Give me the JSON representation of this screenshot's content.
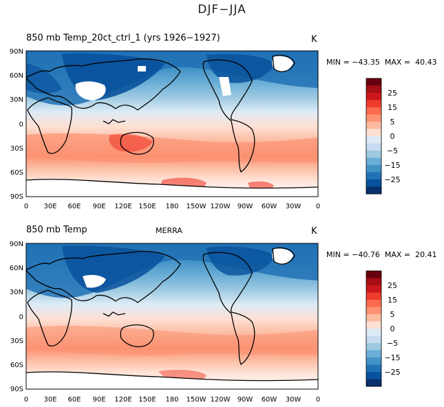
{
  "main_title": "DJF−JJA",
  "panels": [
    {
      "id": "model",
      "left_title": "850 mb Temp_20ct_ctrl_1 (yrs 1926−1927)",
      "center_title": "",
      "unit": "K",
      "stats": "MIN = −43.35  MAX =  40.43"
    },
    {
      "id": "merra",
      "left_title": "850 mb Temp",
      "center_title": "MERRA",
      "unit": "K",
      "stats": "MIN = −40.76  MAX =  20.41"
    }
  ],
  "lat_labels": [
    "90N",
    "60N",
    "30N",
    "0",
    "30S",
    "60S",
    "90S"
  ],
  "lon_labels": [
    "0",
    "30E",
    "60E",
    "90E",
    "120E",
    "150E",
    "180",
    "150W",
    "120W",
    "90W",
    "60W",
    "30W",
    "0"
  ],
  "colorbar": {
    "labels": [
      "25",
      "15",
      "5",
      "0",
      "−5",
      "−15",
      "−25"
    ],
    "colors": [
      "#67000d",
      "#a50f15",
      "#cb181d",
      "#ef3b2c",
      "#fb6a4a",
      "#fc9272",
      "#fcbba1",
      "#fee0d2",
      "#deebf7",
      "#c6dbef",
      "#9ecae1",
      "#6baed6",
      "#4292c6",
      "#2171b5",
      "#08519c",
      "#08306b"
    ]
  }
}
